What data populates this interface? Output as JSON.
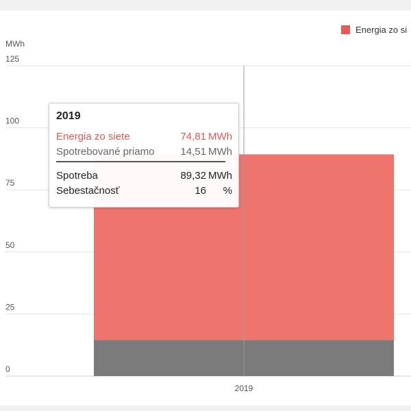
{
  "chart_data": {
    "type": "bar",
    "stacked": true,
    "categories": [
      "2019"
    ],
    "series": [
      {
        "name": "Spotrebované priamo",
        "values": [
          14.51
        ],
        "color": "#7b7b7b"
      },
      {
        "name": "Energia zo siete",
        "values": [
          74.81
        ],
        "color": "#ee756d"
      }
    ],
    "ylabel": "MWh",
    "ylim": [
      0,
      125
    ],
    "yticks": [
      "0",
      "25",
      "50",
      "75",
      "100",
      "125"
    ],
    "grid": true,
    "legend": {
      "position": "top-right",
      "entries": [
        {
          "label": "Energia zo si",
          "color": "#e05a56"
        }
      ]
    }
  },
  "tooltip": {
    "title": "2019",
    "rows": [
      {
        "label": "Energia zo siete",
        "value": "74,81",
        "unit": "MWh"
      },
      {
        "label": "Spotrebované priamo",
        "value": "14,51",
        "unit": "MWh"
      }
    ],
    "summary": [
      {
        "label": "Spotreba",
        "value": "89,32",
        "unit": "MWh"
      },
      {
        "label": "Sebestačnosť",
        "value": "16",
        "unit": "%"
      }
    ]
  }
}
